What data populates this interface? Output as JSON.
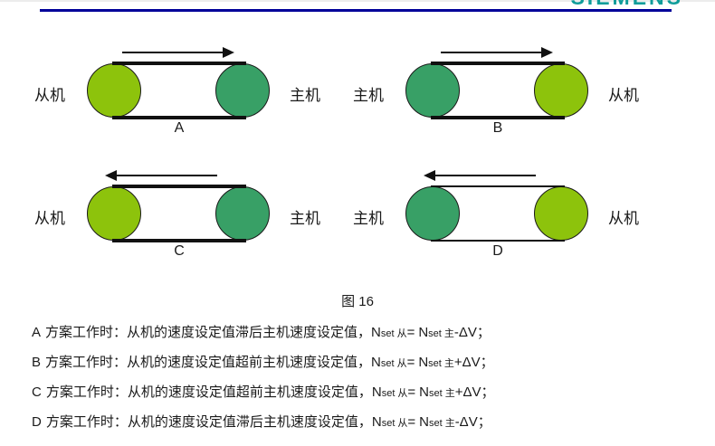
{
  "header": {
    "logo_text": "SIEMENS",
    "logo_color": "#0f9c9a",
    "rule_color": "#000099"
  },
  "colors": {
    "slave_green": "#8dc30c",
    "master_green": "#38a066",
    "belt_black": "#111111"
  },
  "diagrams": [
    {
      "letter": "A",
      "left_label": "从机",
      "right_label": "主机",
      "left_role": "slave",
      "right_role": "master",
      "arrow_direction": "right"
    },
    {
      "letter": "B",
      "left_label": "主机",
      "right_label": "从机",
      "left_role": "master",
      "right_role": "slave",
      "arrow_direction": "right"
    },
    {
      "letter": "C",
      "left_label": "从机",
      "right_label": "主机",
      "left_role": "slave",
      "right_role": "master",
      "arrow_direction": "left"
    },
    {
      "letter": "D",
      "left_label": "主机",
      "right_label": "从机",
      "left_role": "master",
      "right_role": "slave",
      "arrow_direction": "left"
    }
  ],
  "caption": "图 16",
  "lines": [
    {
      "prefix": "A",
      "body": "方案工作时：从机的速度设定值滞后主机速度设定值，",
      "formula": {
        "n1": "N",
        "sub1": "set",
        "subc1": "从",
        "eq": "=",
        "n2": "N",
        "sub2": "set",
        "subc2": "主",
        "tail": "-ΔV；"
      }
    },
    {
      "prefix": "B",
      "body": "方案工作时：从机的速度设定值超前主机速度设定值，",
      "formula": {
        "n1": "N",
        "sub1": "set",
        "subc1": "从",
        "eq": "=",
        "n2": "N",
        "sub2": "set",
        "subc2": "主",
        "tail": "+ΔV；"
      }
    },
    {
      "prefix": "C",
      "body": "方案工作时：从机的速度设定值超前主机速度设定值，",
      "formula": {
        "n1": "N",
        "sub1": "set",
        "subc1": "从",
        "eq": "=",
        "n2": "N",
        "sub2": "set",
        "subc2": "主",
        "tail": "+ΔV；"
      }
    },
    {
      "prefix": "D",
      "body": "方案工作时：从机的速度设定值滞后主机速度设定值，",
      "formula": {
        "n1": "N",
        "sub1": "set",
        "subc1": "从",
        "eq": "=",
        "n2": "N",
        "sub2": "set",
        "subc2": "主",
        "tail": "-ΔV；"
      }
    }
  ]
}
